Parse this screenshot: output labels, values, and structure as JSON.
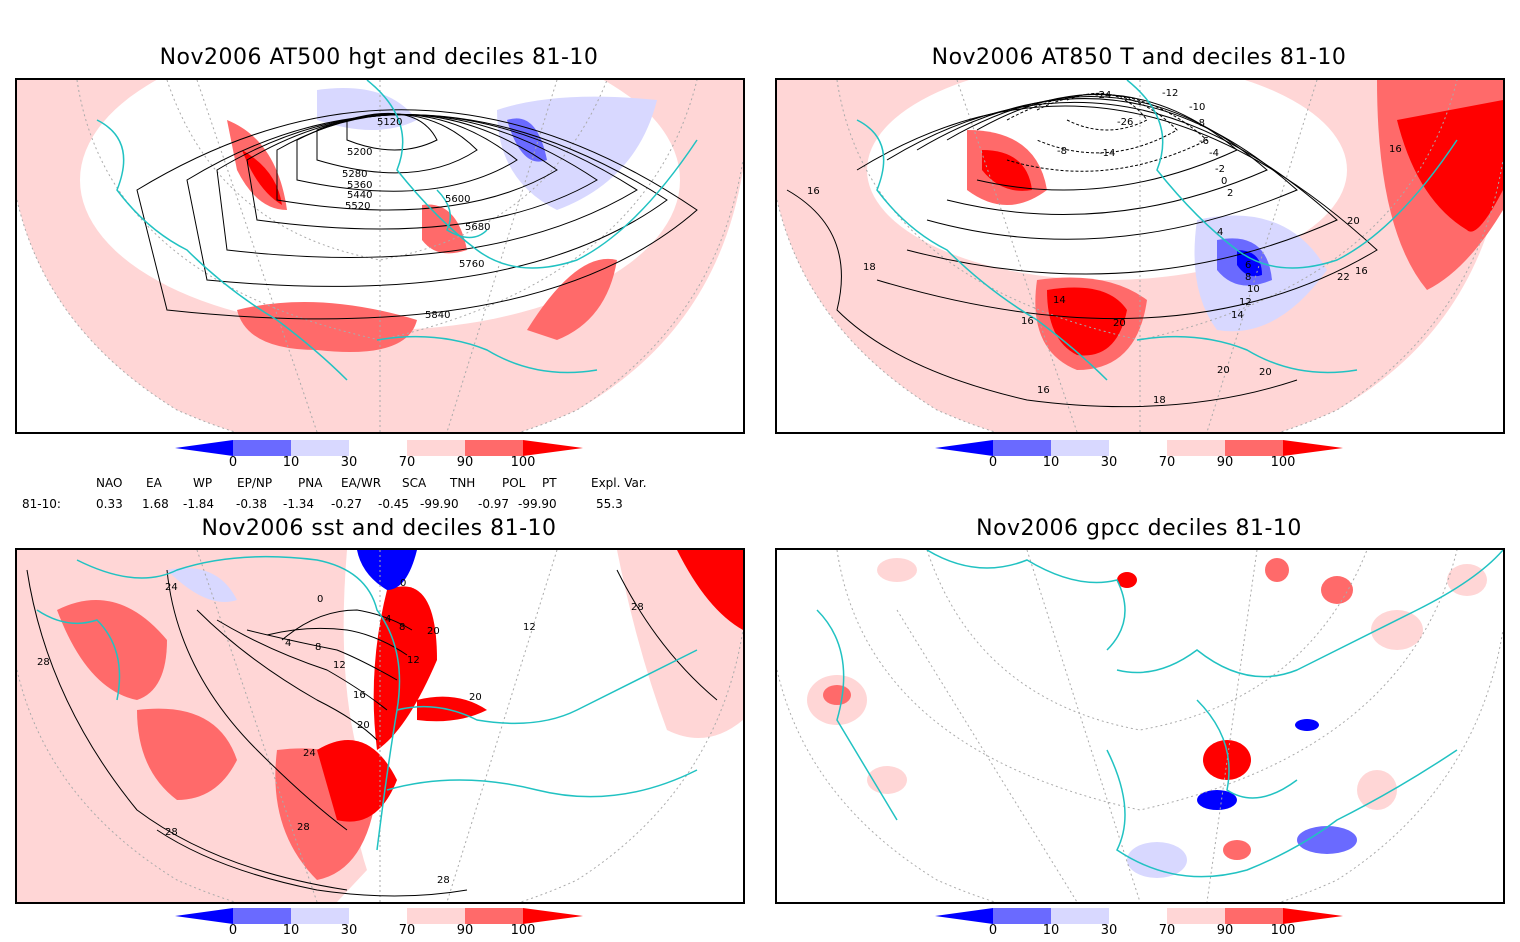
{
  "panels": {
    "p1": {
      "title": "Nov2006 AT500 hgt and deciles 81-10",
      "contour_labels": [
        "5120",
        "5200",
        "5280",
        "5360",
        "5440",
        "5520",
        "5600",
        "5680",
        "5760",
        "5840"
      ]
    },
    "p2": {
      "title": "Nov2006 AT850 T and deciles 81-10",
      "contour_labels": [
        "-24",
        "-26",
        "-12",
        "-10",
        "-8",
        "-14",
        "-6",
        "-8",
        "-4",
        "-2",
        "0",
        "2",
        "4",
        "6",
        "8",
        "10",
        "12",
        "14",
        "16",
        "16",
        "16",
        "16",
        "18",
        "18",
        "20",
        "20",
        "20",
        "22",
        "14",
        "20",
        "16"
      ]
    },
    "p3": {
      "title": "Nov2006 sst and deciles 81-10",
      "contour_labels": [
        "24",
        "28",
        "28",
        "28",
        "28",
        "0",
        "0",
        "4",
        "4",
        "8",
        "8",
        "12",
        "12",
        "16",
        "20",
        "20",
        "24",
        "12",
        "20",
        "28"
      ]
    },
    "p4": {
      "title": "Nov2006 gpcc deciles 81-10",
      "contour_labels": []
    }
  },
  "colorbar": {
    "ticks": [
      "0",
      "10",
      "30",
      "70",
      "90",
      "100"
    ],
    "colors": [
      "#0000ff",
      "#6a6aff",
      "#d8d8ff",
      "#ffffff",
      "#ffd6d6",
      "#ff6a6a",
      "#ff0000"
    ]
  },
  "indices": {
    "headers": [
      "NAO",
      "EA",
      "WP",
      "EP/NP",
      "PNA",
      "EA/WR",
      "SCA",
      "TNH",
      "POL",
      "PT",
      "Expl. Var."
    ],
    "row_label": "81-10:",
    "values": [
      "0.33",
      "1.68",
      "-1.84",
      "-0.38",
      "-1.34",
      "-0.27",
      "-0.45",
      "-99.90",
      "-0.97",
      "-99.90",
      "55.3"
    ]
  },
  "style": {
    "coast_color": "#21c2c2",
    "grid_color": "#999999"
  }
}
